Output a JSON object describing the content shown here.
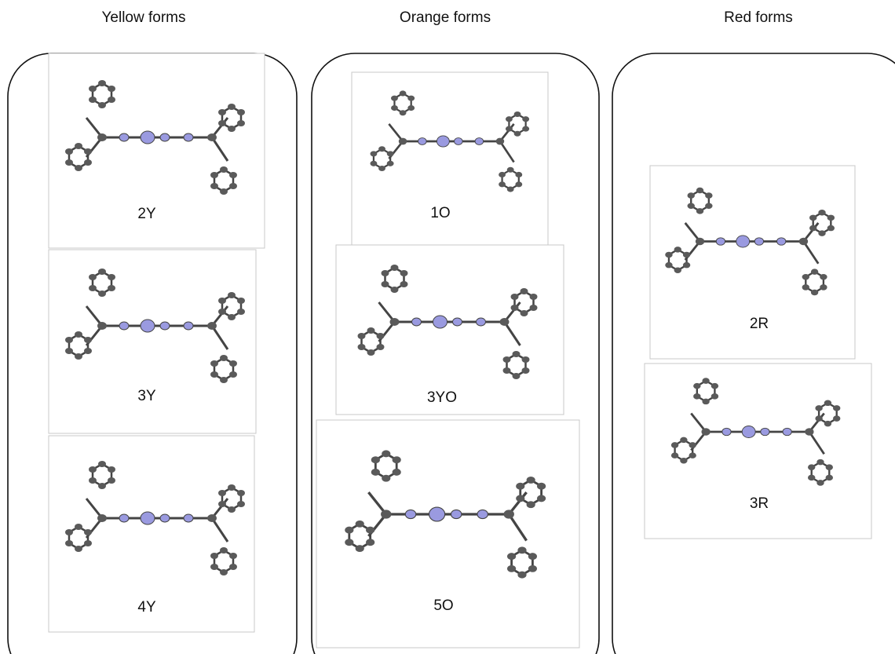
{
  "columns": [
    {
      "title": "Yellow forms",
      "panels": [
        {
          "label": "2Y"
        },
        {
          "label": "3Y"
        },
        {
          "label": "4Y"
        }
      ]
    },
    {
      "title": "Orange forms",
      "panels": [
        {
          "label": "1O"
        },
        {
          "label": "3YO"
        },
        {
          "label": "5O"
        }
      ]
    },
    {
      "title": "Red forms",
      "panels": [
        {
          "label": "2R"
        },
        {
          "label": "3R"
        }
      ]
    }
  ]
}
